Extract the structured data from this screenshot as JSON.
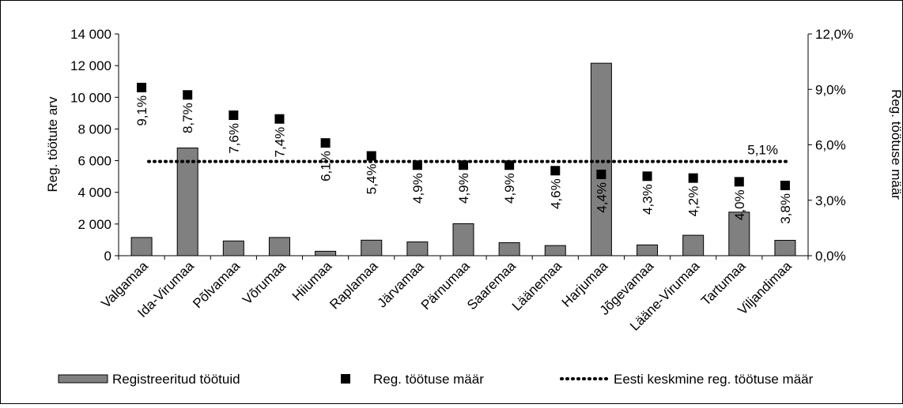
{
  "chart_data": {
    "type": "bar",
    "title": "",
    "categories": [
      "Valgamaa",
      "Ida-Virumaa",
      "Põlvamaa",
      "Võrumaa",
      "Hiiumaa",
      "Raplamaa",
      "Järvamaa",
      "Pärnumaa",
      "Saaremaa",
      "Läänemaa",
      "Harjumaa",
      "Jõgevamaa",
      "Lääne-Virumaa",
      "Tartumaa",
      "Viljandimaa"
    ],
    "ylabel": "Reg. töötute arv",
    "y2label": "Reg. töötuse määr",
    "ylim": [
      0,
      14000
    ],
    "y2lim": [
      0,
      12
    ],
    "yticks": [
      "0",
      "2 000",
      "4 000",
      "6 000",
      "8 000",
      "10 000",
      "12 000",
      "14 000"
    ],
    "y2ticks": [
      "0,0%",
      "3,0%",
      "6,0%",
      "9,0%",
      "12,0%"
    ],
    "grid": false,
    "legend_position": "bottom",
    "series": [
      {
        "name": "Registreeritud töötuid",
        "type": "bar",
        "axis": "left",
        "color": "#808080",
        "values": [
          1150,
          6800,
          930,
          1150,
          280,
          980,
          870,
          2020,
          820,
          640,
          12150,
          680,
          1290,
          2750,
          970
        ]
      },
      {
        "name": "Reg. töötuse määr",
        "type": "marker",
        "axis": "right",
        "color": "#000000",
        "values": [
          9.1,
          8.7,
          7.6,
          7.4,
          6.1,
          5.4,
          4.9,
          4.9,
          4.9,
          4.6,
          4.4,
          4.3,
          4.2,
          4.0,
          3.8
        ],
        "labels": [
          "9,1%",
          "8,7%",
          "7,6%",
          "7,4%",
          "6,1%",
          "5,4%",
          "4,9%",
          "4,9%",
          "4,9%",
          "4,6%",
          "4,4%",
          "4,3%",
          "4,2%",
          "4,0%",
          "3,8%"
        ]
      },
      {
        "name": "Eesti keskmine reg. töötuse määr",
        "type": "line",
        "axis": "right",
        "style": "dotted",
        "color": "#000000",
        "value": 5.1,
        "label": "5,1%"
      }
    ]
  }
}
